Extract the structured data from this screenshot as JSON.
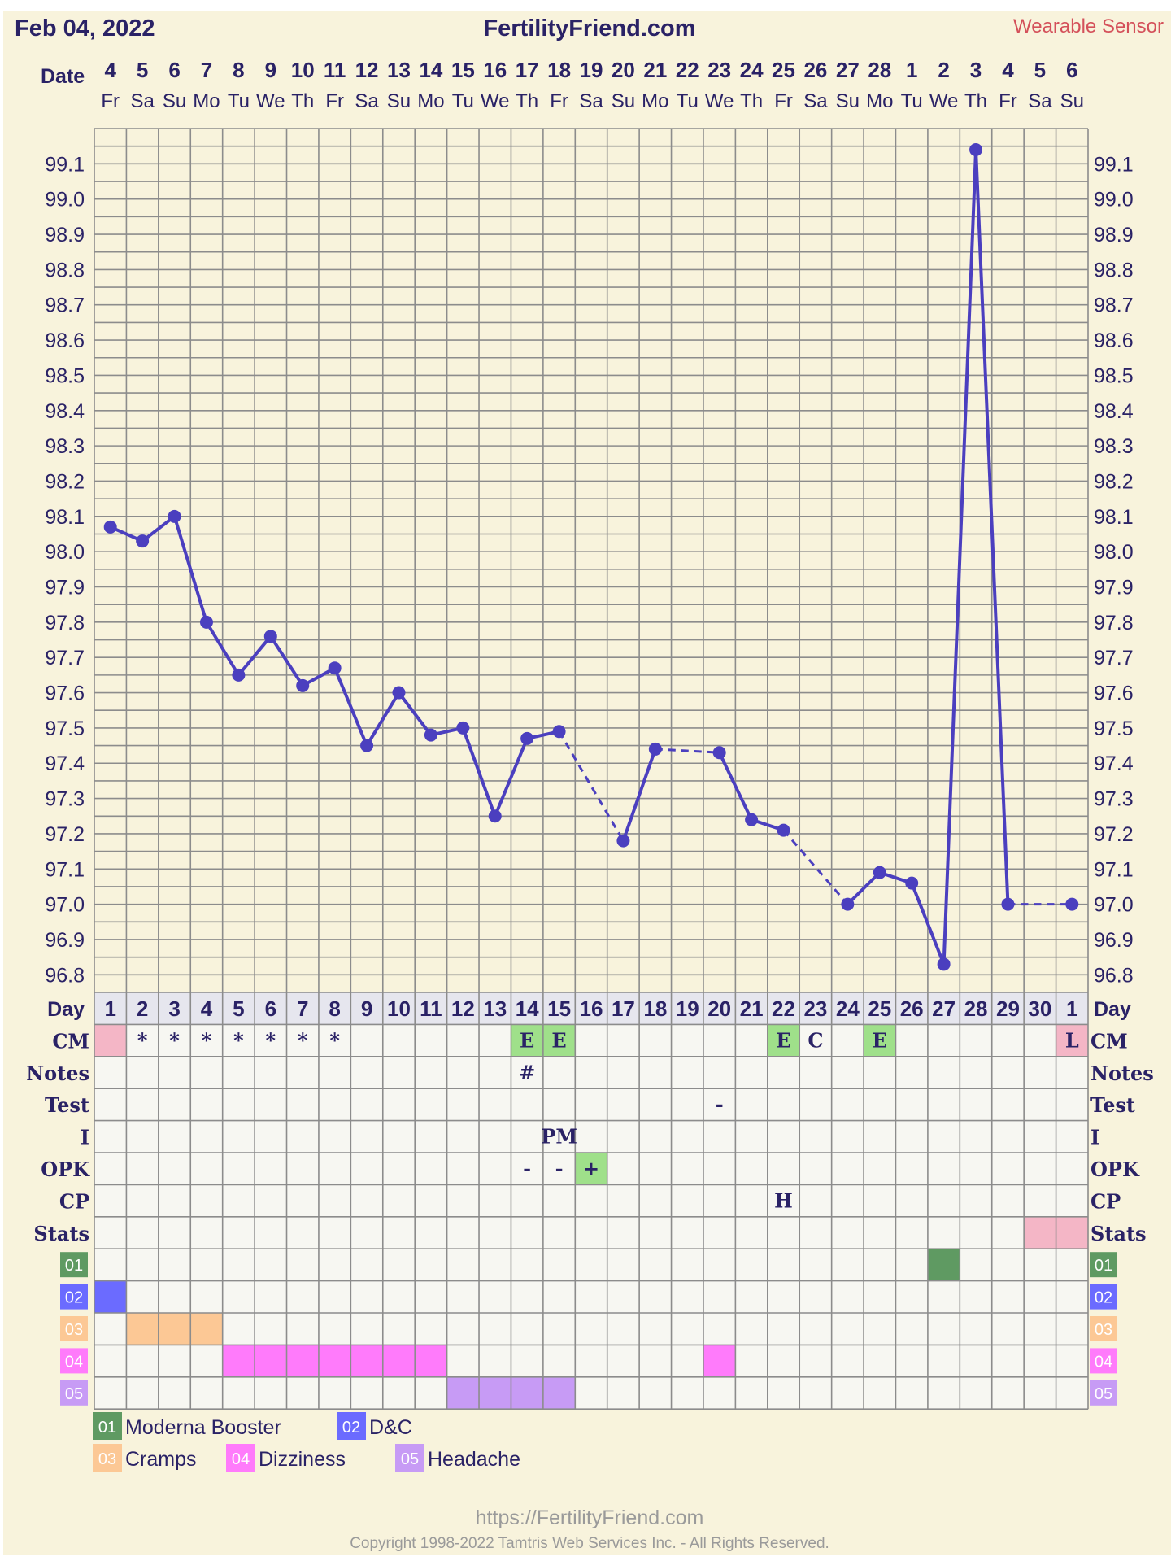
{
  "header": {
    "chart_date": "Feb 04, 2022",
    "site": "FertilityFriend.com",
    "source": "Wearable Sensor"
  },
  "labels": {
    "date": "Date",
    "day": "Day",
    "rows": [
      "CM",
      "Notes",
      "Test",
      "I",
      "OPK",
      "CP",
      "Stats"
    ]
  },
  "calendar": {
    "dates": [
      "4",
      "5",
      "6",
      "7",
      "8",
      "9",
      "10",
      "11",
      "12",
      "13",
      "14",
      "15",
      "16",
      "17",
      "18",
      "19",
      "20",
      "21",
      "22",
      "23",
      "24",
      "25",
      "26",
      "27",
      "28",
      "1",
      "2",
      "3",
      "4",
      "5",
      "6"
    ],
    "weekdays": [
      "Fr",
      "Sa",
      "Su",
      "Mo",
      "Tu",
      "We",
      "Th",
      "Fr",
      "Sa",
      "Su",
      "Mo",
      "Tu",
      "We",
      "Th",
      "Fr",
      "Sa",
      "Su",
      "Mo",
      "Tu",
      "We",
      "Th",
      "Fr",
      "Sa",
      "Su",
      "Mo",
      "Tu",
      "We",
      "Th",
      "Fr",
      "Sa",
      "Su"
    ],
    "cycle_days": [
      "1",
      "2",
      "3",
      "4",
      "5",
      "6",
      "7",
      "8",
      "9",
      "10",
      "11",
      "12",
      "13",
      "14",
      "15",
      "16",
      "17",
      "18",
      "19",
      "20",
      "21",
      "22",
      "23",
      "24",
      "25",
      "26",
      "27",
      "28",
      "29",
      "30",
      "1"
    ]
  },
  "chart_data": {
    "type": "line",
    "x": [
      1,
      2,
      3,
      4,
      5,
      6,
      7,
      8,
      9,
      10,
      11,
      12,
      13,
      14,
      15,
      16,
      17,
      18,
      19,
      20,
      21,
      22,
      23,
      24,
      25,
      26,
      27,
      28,
      29,
      30,
      31
    ],
    "series": [
      {
        "values": [
          98.07,
          98.03,
          98.1,
          97.8,
          97.65,
          97.76,
          97.62,
          97.67,
          97.45,
          97.6,
          97.48,
          97.5,
          97.25,
          97.47,
          97.49,
          null,
          97.18,
          97.44,
          null,
          97.43,
          97.24,
          97.21,
          null,
          97.0,
          97.09,
          97.06,
          96.83,
          99.14,
          97.0,
          null,
          97.0
        ],
        "color": "#4b3fbf"
      }
    ],
    "dashed_gaps": [
      [
        15,
        17
      ],
      [
        18,
        20
      ],
      [
        22,
        24
      ],
      [
        29,
        31
      ]
    ],
    "ylim": [
      96.75,
      99.2
    ],
    "yticks": [
      "96.8",
      "96.9",
      "97.0",
      "97.1",
      "97.2",
      "97.3",
      "97.4",
      "97.5",
      "97.6",
      "97.7",
      "97.8",
      "97.9",
      "98.0",
      "98.1",
      "98.2",
      "98.3",
      "98.4",
      "98.5",
      "98.6",
      "98.7",
      "98.8",
      "98.9",
      "99.0",
      "99.1"
    ],
    "grid": true,
    "legend": "bottom-left"
  },
  "observations": {
    "cm": [
      {
        "col": 1,
        "text": "",
        "fill": "#f4b6c6"
      },
      {
        "col": 2,
        "text": "*"
      },
      {
        "col": 3,
        "text": "*"
      },
      {
        "col": 4,
        "text": "*"
      },
      {
        "col": 5,
        "text": "*"
      },
      {
        "col": 6,
        "text": "*"
      },
      {
        "col": 7,
        "text": "*"
      },
      {
        "col": 8,
        "text": "*"
      },
      {
        "col": 14,
        "text": "E",
        "fill": "#9fe08a"
      },
      {
        "col": 15,
        "text": "E",
        "fill": "#9fe08a"
      },
      {
        "col": 22,
        "text": "E",
        "fill": "#9fe08a"
      },
      {
        "col": 23,
        "text": "C"
      },
      {
        "col": 25,
        "text": "E",
        "fill": "#9fe08a"
      },
      {
        "col": 31,
        "text": "L",
        "fill": "#f4b6c6"
      }
    ],
    "notes": [
      {
        "col": 14,
        "text": "#"
      }
    ],
    "test": [
      {
        "col": 20,
        "text": "-"
      }
    ],
    "i": [
      {
        "col": 15,
        "text": "PM"
      }
    ],
    "opk": [
      {
        "col": 14,
        "text": "-"
      },
      {
        "col": 15,
        "text": "-"
      },
      {
        "col": 16,
        "text": "+",
        "fill": "#9fe08a"
      }
    ],
    "cp": [
      {
        "col": 22,
        "text": "H"
      }
    ],
    "stats": [
      {
        "col": 30,
        "fill": "#f4b6c6"
      },
      {
        "col": 31,
        "fill": "#f4b6c6"
      }
    ]
  },
  "custom_rows": [
    {
      "code": "01",
      "color": "#5f9a62",
      "cols": [
        27
      ]
    },
    {
      "code": "02",
      "color": "#6b6bff",
      "cols": [
        1
      ]
    },
    {
      "code": "03",
      "color": "#fcc895",
      "cols": [
        2,
        3,
        4
      ]
    },
    {
      "code": "04",
      "color": "#ff7bfb",
      "cols": [
        5,
        6,
        7,
        8,
        9,
        10,
        11,
        20
      ]
    },
    {
      "code": "05",
      "color": "#c79bf5",
      "cols": [
        12,
        13,
        14,
        15
      ]
    }
  ],
  "legend": [
    {
      "code": "01",
      "label": "Moderna Booster"
    },
    {
      "code": "02",
      "label": "D&C"
    },
    {
      "code": "03",
      "label": "Cramps"
    },
    {
      "code": "04",
      "label": "Dizziness"
    },
    {
      "code": "05",
      "label": "Headache"
    }
  ],
  "footer": {
    "url": "https://FertilityFriend.com",
    "copyright": "Copyright 1998-2022 Tamtris Web Services Inc. - All Rights Reserved."
  },
  "colors": {
    "background": "#f8f3dc",
    "line": "#4b3fbf",
    "text_dark": "#2a2266",
    "source": "#d4505a",
    "grid": "#8c8c8c",
    "cell": "#f7f7f2",
    "day_row": "#e6e6ee"
  }
}
